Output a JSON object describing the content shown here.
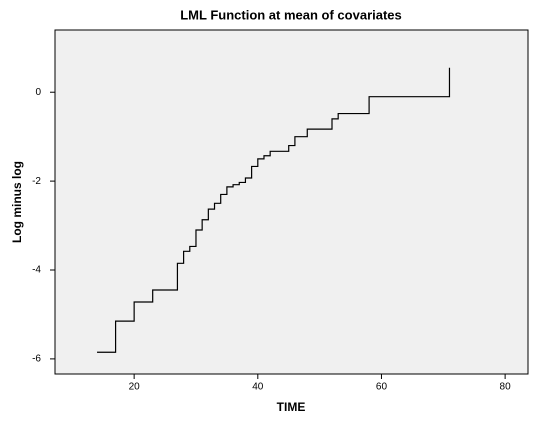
{
  "chart_data": {
    "type": "line",
    "step": "post",
    "title": "LML Function at mean of covariates",
    "x_label": "TIME",
    "y_label": "Log minus log",
    "x": [
      14,
      17,
      20,
      23,
      27,
      28,
      29,
      30,
      31,
      32,
      33,
      34,
      35,
      36,
      37,
      38,
      39,
      40,
      41,
      42,
      45,
      46,
      48,
      52,
      53,
      58,
      71
    ],
    "series": [
      {
        "color": "#000000",
        "values": [
          -5.85,
          -5.15,
          -4.72,
          -4.45,
          -3.85,
          -3.58,
          -3.47,
          -3.1,
          -2.87,
          -2.63,
          -2.5,
          -2.3,
          -2.13,
          -2.08,
          -2.03,
          -1.93,
          -1.67,
          -1.5,
          -1.43,
          -1.33,
          -1.2,
          -1.0,
          -0.83,
          -0.6,
          -0.48,
          -0.1,
          0.55
        ]
      }
    ],
    "xlim": [
      7.2,
      83.7
    ],
    "xticks": [
      20,
      40,
      60,
      80
    ],
    "ylim": [
      -6.34,
      1.4
    ],
    "yticks": [
      -6,
      -4,
      -2,
      0
    ],
    "background": "#f0f0f0"
  }
}
